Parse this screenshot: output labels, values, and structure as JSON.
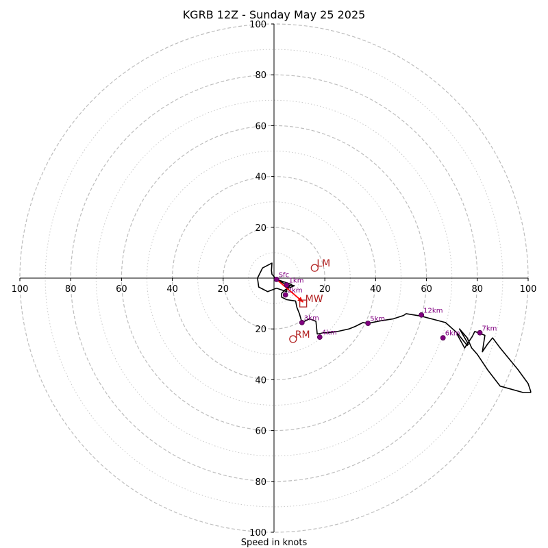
{
  "chart_data": {
    "type": "hodograph",
    "title": "KGRB 12Z - Sunday May 25 2025",
    "xlabel": "Speed in knots",
    "range": 100,
    "rings_major": [
      20,
      40,
      60,
      80,
      100
    ],
    "rings_minor": [
      10,
      30,
      50,
      70,
      90
    ],
    "x_ticks": [
      {
        "v": -100,
        "label": "100"
      },
      {
        "v": -80,
        "label": "80"
      },
      {
        "v": -60,
        "label": "60"
      },
      {
        "v": -40,
        "label": "40"
      },
      {
        "v": -20,
        "label": "20"
      },
      {
        "v": 20,
        "label": "20"
      },
      {
        "v": 40,
        "label": "40"
      },
      {
        "v": 60,
        "label": "60"
      },
      {
        "v": 80,
        "label": "80"
      },
      {
        "v": 100,
        "label": "100"
      }
    ],
    "y_ticks": [
      {
        "v": 100,
        "label": "100"
      },
      {
        "v": 80,
        "label": "80"
      },
      {
        "v": 60,
        "label": "60"
      },
      {
        "v": 40,
        "label": "40"
      },
      {
        "v": 20,
        "label": "20"
      },
      {
        "v": -20,
        "label": "20"
      },
      {
        "v": -40,
        "label": "40"
      },
      {
        "v": -60,
        "label": "60"
      },
      {
        "v": -80,
        "label": "80"
      },
      {
        "v": -100,
        "label": "100"
      }
    ],
    "trace_color": "#000000",
    "trace": [
      [
        1,
        -0.5
      ],
      [
        7,
        -2.5
      ],
      [
        5,
        -4
      ],
      [
        5,
        -5.3
      ],
      [
        1,
        -4
      ],
      [
        -2.5,
        -5.3
      ],
      [
        -6,
        -3.5
      ],
      [
        -6.5,
        0
      ],
      [
        -4.5,
        4
      ],
      [
        -0.8,
        5.9
      ],
      [
        -1,
        3
      ],
      [
        -0.8,
        1.5
      ],
      [
        1,
        -0.5
      ],
      [
        5,
        -2.7
      ],
      [
        8,
        -3
      ],
      [
        4.5,
        -4.5
      ],
      [
        3,
        -6
      ],
      [
        3,
        -7.5
      ],
      [
        5,
        -8.5
      ],
      [
        8.5,
        -9
      ],
      [
        9,
        -11.5
      ],
      [
        10,
        -14
      ],
      [
        11,
        -17.5
      ],
      [
        14,
        -16
      ],
      [
        16.5,
        -17
      ],
      [
        17,
        -22
      ],
      [
        19.5,
        -21.5
      ],
      [
        21,
        -21.5
      ],
      [
        25,
        -21
      ],
      [
        29.5,
        -20
      ],
      [
        32,
        -19
      ],
      [
        35,
        -17.5
      ],
      [
        37,
        -17.8
      ],
      [
        42,
        -16.8
      ],
      [
        47,
        -16
      ],
      [
        51,
        -14.7
      ],
      [
        52,
        -14
      ],
      [
        57,
        -14.8
      ],
      [
        58,
        -15
      ],
      [
        67.5,
        -17.5
      ],
      [
        72,
        -21.5
      ],
      [
        76,
        -26.5
      ],
      [
        76.5,
        -26
      ],
      [
        73,
        -20
      ],
      [
        76,
        -23.5
      ],
      [
        77.8,
        -27.5
      ],
      [
        80,
        -30
      ],
      [
        84,
        -36
      ],
      [
        89,
        -42.5
      ],
      [
        98,
        -45
      ],
      [
        101,
        -45
      ],
      [
        101,
        -44.5
      ],
      [
        100,
        -41.5
      ],
      [
        96,
        -36
      ],
      [
        89,
        -27.5
      ],
      [
        86,
        -23.5
      ],
      [
        84,
        -26
      ],
      [
        82,
        -29
      ],
      [
        83,
        -22.5
      ],
      [
        79,
        -21
      ],
      [
        78,
        -23
      ],
      [
        75,
        -27.5
      ],
      [
        72,
        -22
      ]
    ],
    "height_markers": [
      {
        "label": "Sfc",
        "u": 1,
        "v": -0.5
      },
      {
        "label": "1km",
        "u": 5,
        "v": -2.7
      },
      {
        "label": "2km",
        "u": 4.5,
        "v": -6.6
      },
      {
        "label": "3km",
        "u": 11,
        "v": -17.5
      },
      {
        "label": "4km",
        "u": 18,
        "v": -23.2
      },
      {
        "label": "5km",
        "u": 37,
        "v": -17.8
      },
      {
        "label": "6km",
        "u": 66.5,
        "v": -23.5
      },
      {
        "label": "7km",
        "u": 81,
        "v": -21.5
      },
      {
        "label": "12km",
        "u": 58,
        "v": -14.5
      }
    ],
    "height_marker_color": "#800080",
    "motion_color": "#b22222",
    "storm_motions": [
      {
        "label": "LM",
        "u": 16,
        "v": 4,
        "shape": "circle"
      },
      {
        "label": "RM",
        "u": 7.5,
        "v": -24,
        "shape": "circle"
      },
      {
        "label": "MW",
        "u": 11.5,
        "v": -10,
        "shape": "square"
      }
    ],
    "shear_vector": {
      "from": [
        1,
        -0.5
      ],
      "to": [
        11.5,
        -9.5
      ],
      "color": "#ff0000"
    }
  }
}
